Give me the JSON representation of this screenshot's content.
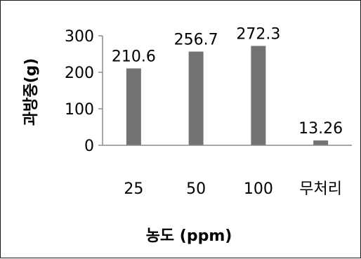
{
  "chart_data": {
    "type": "bar",
    "categories": [
      "25",
      "50",
      "100",
      "무처리"
    ],
    "values": [
      210.6,
      256.7,
      272.3,
      13.26
    ],
    "data_labels": [
      "210.6",
      "256.7",
      "272.3",
      "13.26"
    ],
    "xlabel": "농도 (ppm)",
    "ylabel": "과방중(g)",
    "ylim": [
      0,
      300
    ],
    "yticks": [
      0,
      100,
      200,
      300
    ],
    "grid": false,
    "legend": "none",
    "bar_color": "#737373",
    "axis_color": "#8c8c8c"
  }
}
